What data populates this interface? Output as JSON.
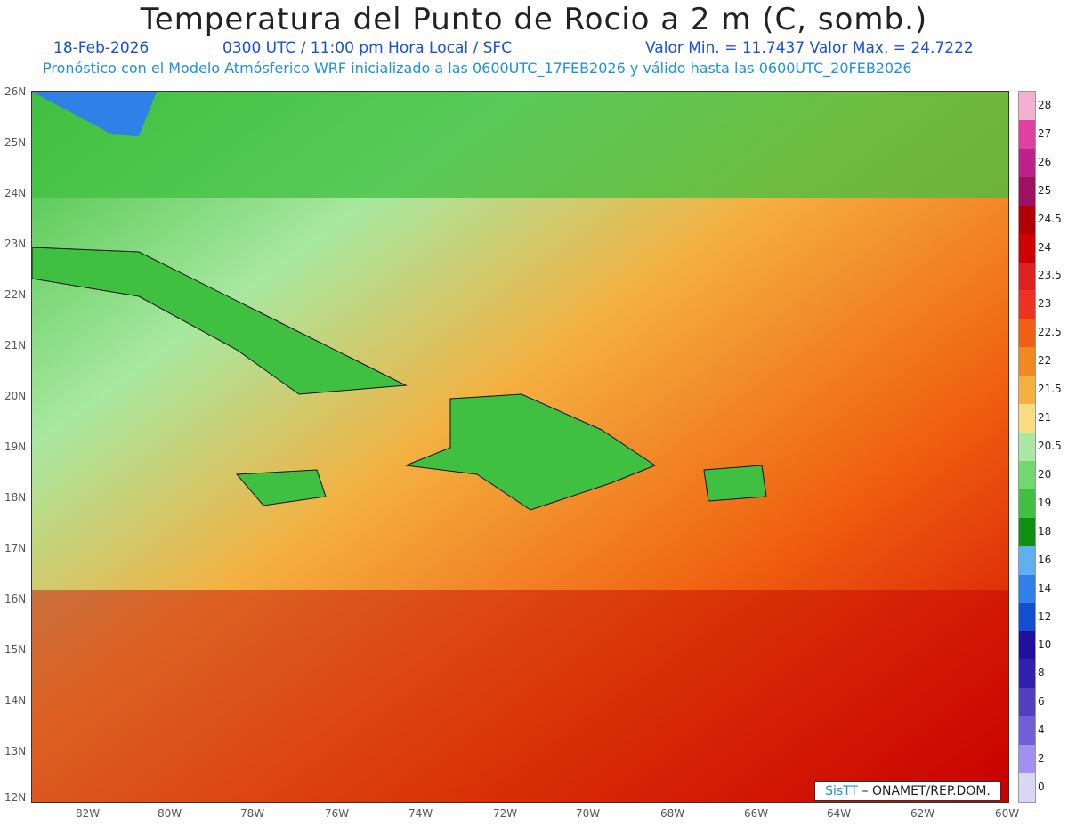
{
  "header": {
    "title": "Temperatura del Punto de Rocio a 2 m (C, somb.)",
    "date": "18-Feb-2026",
    "time": "0300 UTC / 11:00 pm Hora Local / SFC",
    "minmax": "Valor Min. = 11.7437  Valor Max. = 24.7222",
    "model": "Pronóstico con el Modelo Atmósferico WRF inicializado a las 0600UTC_17FEB2026 y válido hasta las  0600UTC_20FEB2026"
  },
  "lat_labels": [
    "26N",
    "25N",
    "24N",
    "23N",
    "22N",
    "21N",
    "20N",
    "19N",
    "18N",
    "17N",
    "16N",
    "15N",
    "14N",
    "13N",
    "12N"
  ],
  "lon_labels": [
    "82W",
    "80W",
    "78W",
    "76W",
    "74W",
    "72W",
    "70W",
    "68W",
    "66W",
    "64W",
    "62W",
    "60W"
  ],
  "colorbar": {
    "labels": [
      "28",
      "27",
      "26",
      "25",
      "24.5",
      "24",
      "23.5",
      "23",
      "22.5",
      "22",
      "21.5",
      "21",
      "20.5",
      "20",
      "19",
      "18",
      "16",
      "14",
      "12",
      "10",
      "8",
      "6",
      "4",
      "2",
      "0"
    ],
    "colors": [
      "#f4b0d0",
      "#e040a0",
      "#c0208a",
      "#a01060",
      "#b00000",
      "#d00000",
      "#e02020",
      "#f03020",
      "#f06010",
      "#f08a20",
      "#f4b040",
      "#f8dc80",
      "#a8e8a0",
      "#70d870",
      "#40c040",
      "#109010",
      "#60b0f0",
      "#3080e8",
      "#1050d0",
      "#2010a0",
      "#3020b0",
      "#5040c0",
      "#7060d8",
      "#a090f0",
      "#d8d8f4"
    ]
  },
  "credit": {
    "logo": "SisTT",
    "text": "– ONAMET/REP.DOM."
  }
}
